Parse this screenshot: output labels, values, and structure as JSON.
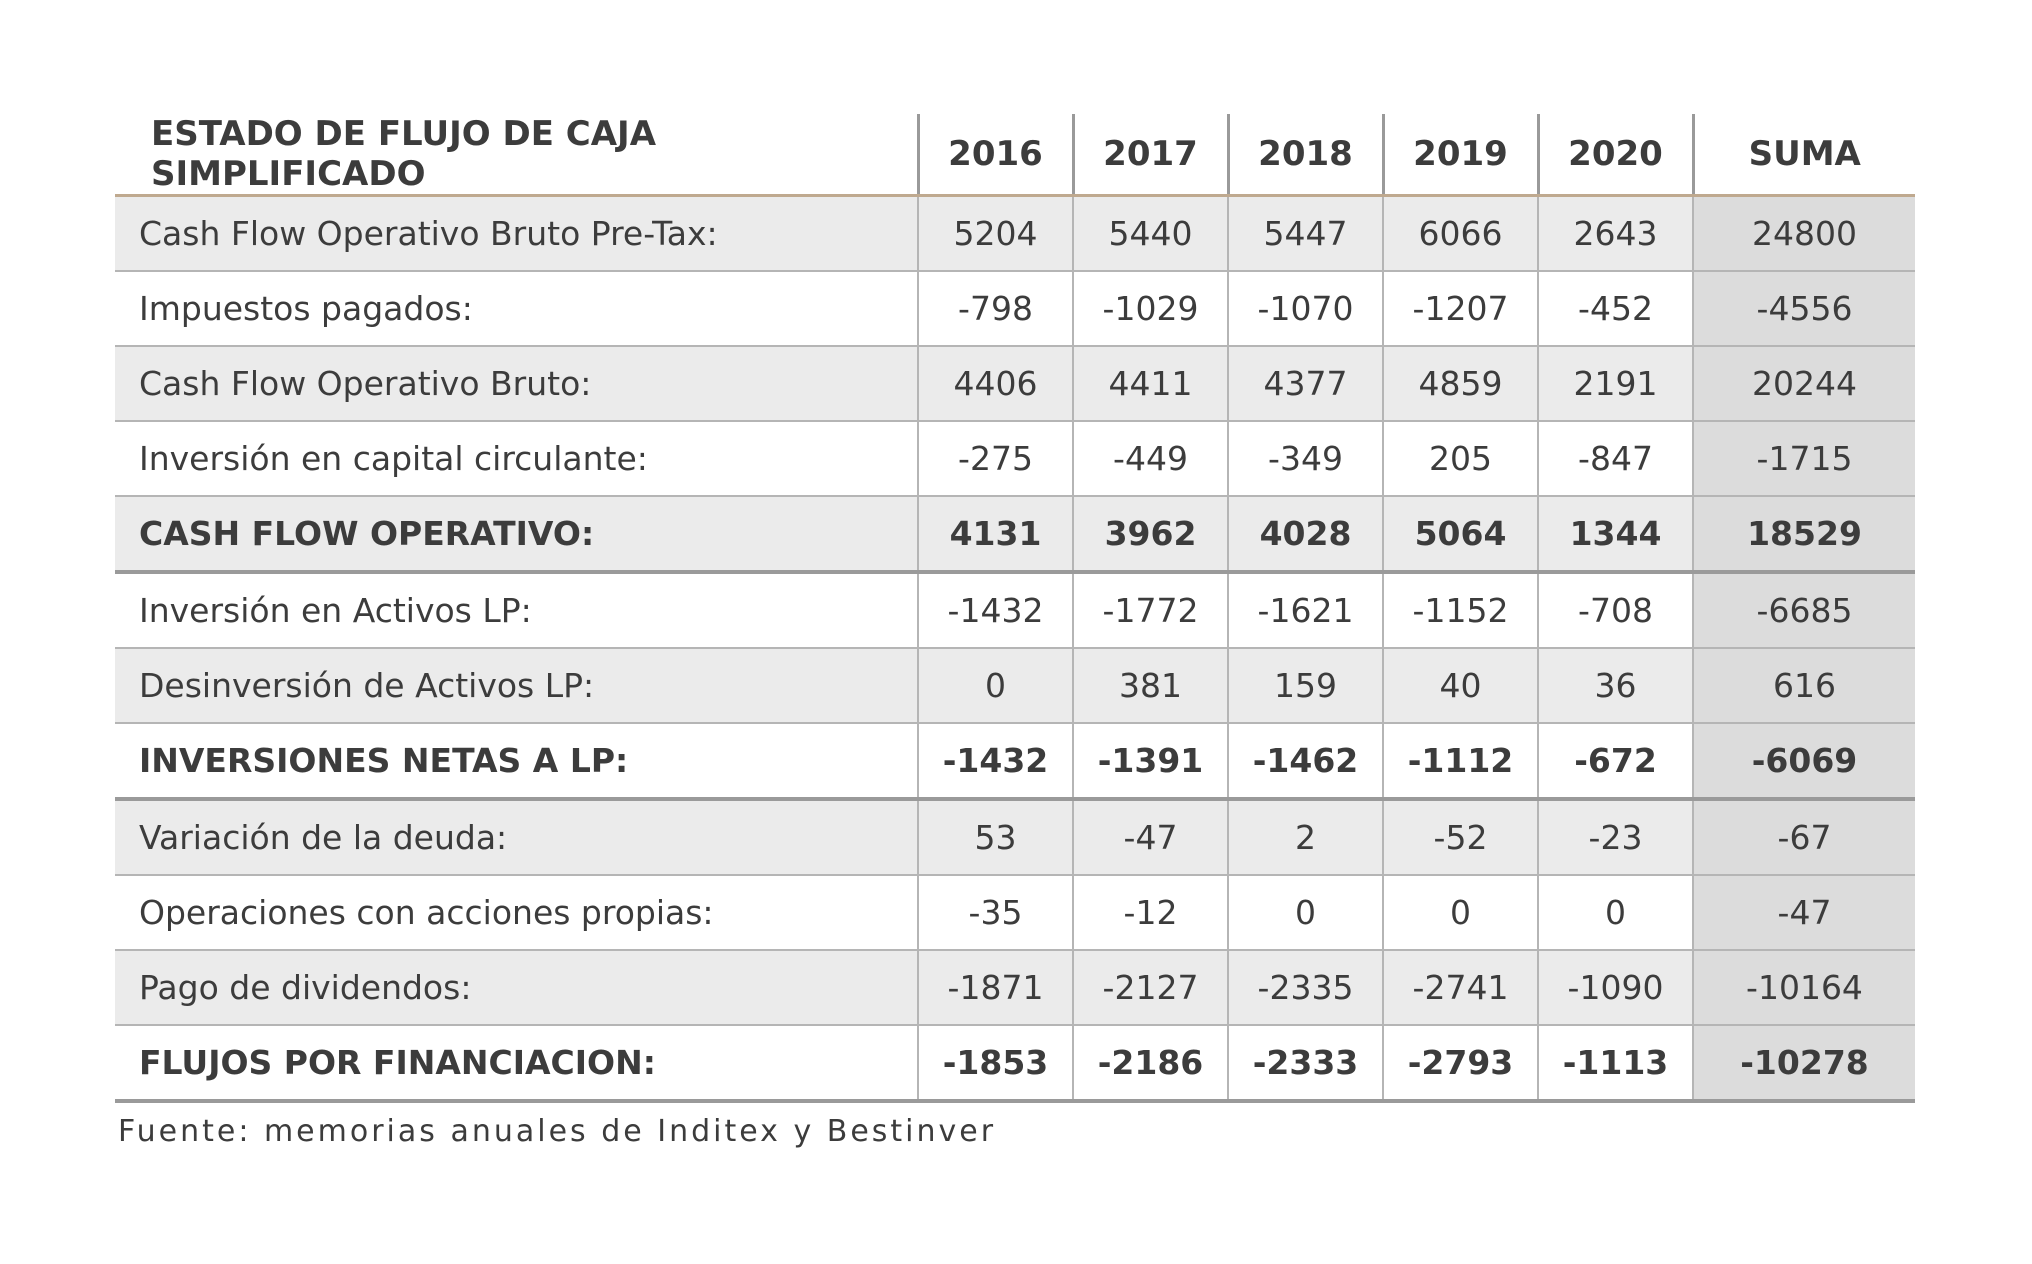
{
  "table": {
    "header": [
      "ESTADO DE FLUJO DE CAJA SIMPLIFICADO",
      "2016",
      "2017",
      "2018",
      "2019",
      "2020",
      "SUMA"
    ],
    "rows": [
      [
        "Cash Flow Operativo Bruto Pre-Tax:",
        5204,
        5440,
        5447,
        6066,
        2643,
        24800
      ],
      [
        "Impuestos pagados:",
        -798,
        -1029,
        -1070,
        -1207,
        -452,
        -4556
      ],
      [
        "Cash Flow Operativo Bruto:",
        4406,
        4411,
        4377,
        4859,
        2191,
        20244
      ],
      [
        "Inversión en capital circulante:",
        -275,
        -449,
        -349,
        205,
        -847,
        -1715
      ],
      [
        "CASH FLOW OPERATIVO:",
        4131,
        3962,
        4028,
        5064,
        1344,
        18529
      ],
      [
        "Inversión en Activos LP:",
        -1432,
        -1772,
        -1621,
        -1152,
        -708,
        -6685
      ],
      [
        "Desinversión de Activos LP:",
        0,
        381,
        159,
        40,
        36,
        616
      ],
      [
        "INVERSIONES NETAS A LP:",
        -1432,
        -1391,
        -1462,
        -1112,
        -672,
        -6069
      ],
      [
        "Variación de la deuda:",
        53,
        -47,
        2,
        -52,
        -23,
        -67
      ],
      [
        "Operaciones con acciones propias:",
        -35,
        -12,
        0,
        0,
        0,
        -47
      ],
      [
        "Pago de dividendos:",
        -1871,
        -2127,
        -2335,
        -2741,
        -1090,
        -10164
      ],
      [
        "FLUJOS POR FINANCIACION:",
        -1853,
        -2186,
        -2333,
        -2793,
        -1113,
        -10278
      ]
    ]
  },
  "source": "Fuente: memorias anuales de Inditex y Bestinver"
}
